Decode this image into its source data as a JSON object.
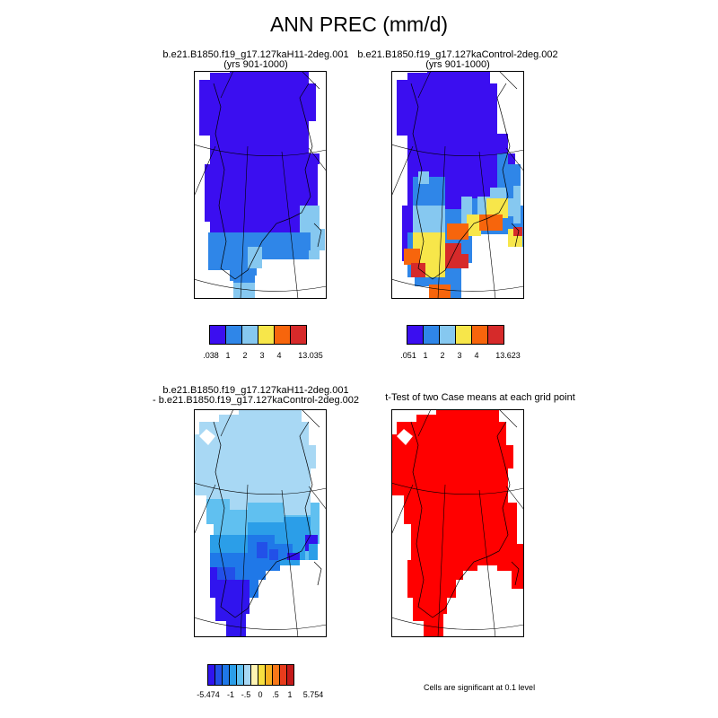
{
  "figure": {
    "title": "ANN PREC (mm/d)",
    "panels": [
      {
        "title_line1": "b.e21.B1850.f19_g17.127kaH11-2deg.001",
        "title_line2": "(yrs 901-1000)",
        "colorbar": {
          "colors": [
            "#3b0ef0",
            "#2f86e8",
            "#86c8f0",
            "#f7e64a",
            "#f7650c",
            "#d62a2a"
          ],
          "ticks": [
            ".038",
            "1",
            "2",
            "3",
            "4",
            "13.035"
          ]
        }
      },
      {
        "title_line1": "b.e21.B1850.f19_g17.127kaControl-2deg.002",
        "title_line2": "(yrs 901-1000)",
        "colorbar": {
          "colors": [
            "#3b0ef0",
            "#2f86e8",
            "#86c8f0",
            "#f7e64a",
            "#f7650c",
            "#d62a2a"
          ],
          "ticks": [
            ".051",
            "1",
            "2",
            "3",
            "4",
            "13.623"
          ]
        }
      },
      {
        "title_line1": "b.e21.B1850.f19_g17.127kaH11-2deg.001",
        "title_line2": "- b.e21.B1850.f19_g17.127kaControl-2deg.002",
        "colorbar": {
          "colors": [
            "#3014ee",
            "#2250e8",
            "#1f78e8",
            "#2b9ee8",
            "#60c0f0",
            "#a8d8f4",
            "#fff4b4",
            "#f8e040",
            "#f8b020",
            "#f87818",
            "#e83c1c",
            "#c41a1a"
          ],
          "ticks": [
            "-5.474",
            "-1",
            "-.5",
            "0",
            ".5",
            "1",
            "5.754"
          ]
        }
      },
      {
        "title_line1": "t-Test of two Case means at each grid point",
        "note": "Cells are significant at 0.1 level",
        "fill_color": "#ff0000"
      }
    ]
  }
}
